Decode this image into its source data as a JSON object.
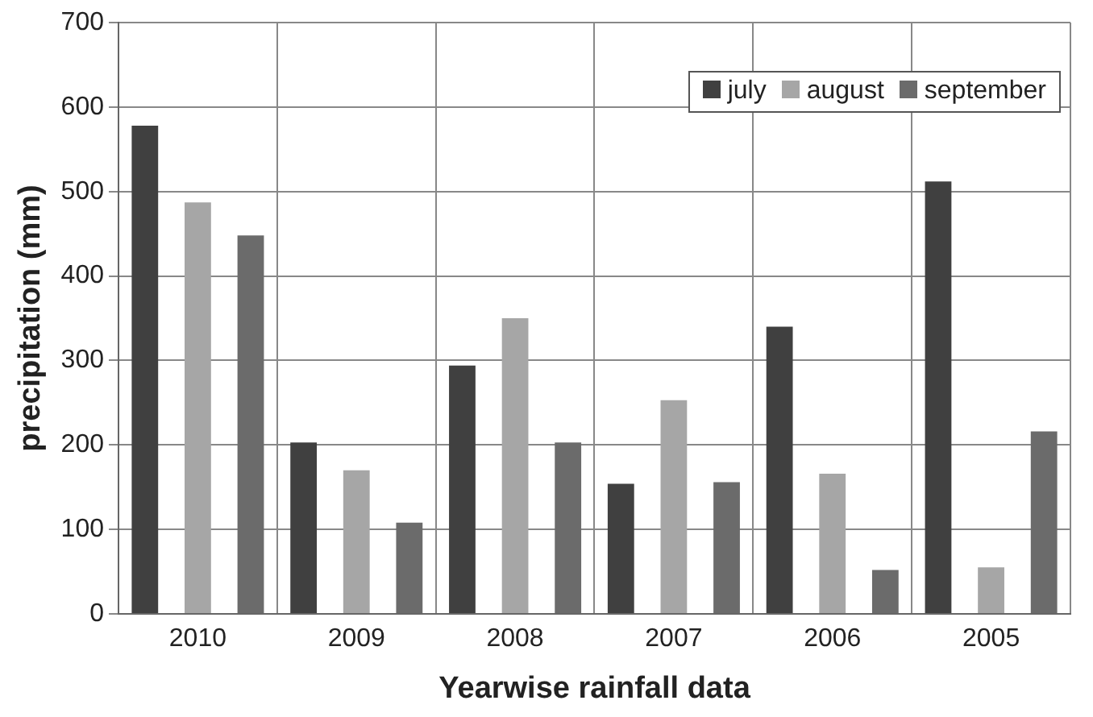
{
  "chart_data": {
    "type": "bar",
    "xlabel": "Yearwise rainfall data",
    "ylabel": "precipitation (mm)",
    "categories": [
      "2010",
      "2009",
      "2008",
      "2007",
      "2006",
      "2005"
    ],
    "series": [
      {
        "name": "july",
        "color": "#404040",
        "values": [
          578,
          203,
          294,
          154,
          340,
          512
        ]
      },
      {
        "name": "august",
        "color": "#a6a6a6",
        "values": [
          487,
          170,
          350,
          253,
          166,
          55
        ]
      },
      {
        "name": "september",
        "color": "#6b6b6b",
        "values": [
          448,
          108,
          203,
          156,
          52,
          216
        ]
      }
    ],
    "ylim": [
      0,
      700
    ],
    "yticks": [
      0,
      100,
      200,
      300,
      400,
      500,
      600,
      700
    ],
    "grid": true,
    "legend": "top right"
  }
}
